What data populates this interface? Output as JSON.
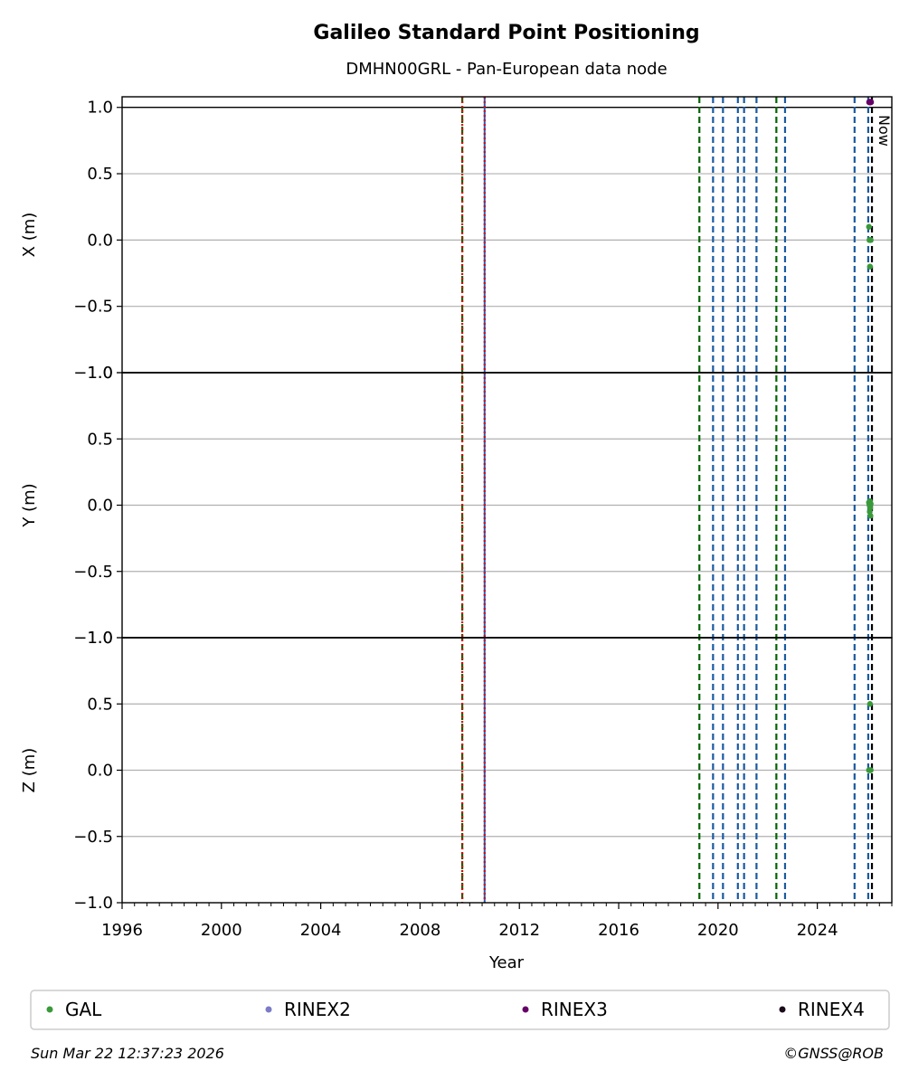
{
  "chart_data": {
    "type": "scatter",
    "title": "Galileo Standard Point Positioning",
    "subtitle": "DMHN00GRL - Pan-European data node",
    "xlabel": "Year",
    "xlim": [
      1996.0,
      2027.0
    ],
    "x_ticks": [
      1996,
      2000,
      2004,
      2008,
      2012,
      2016,
      2020,
      2024
    ],
    "x_tick_labels": [
      "1996",
      "2000",
      "2004",
      "2008",
      "2012",
      "2016",
      "2020",
      "2024"
    ],
    "x_minor_tick_step": 0.5,
    "now_label": "Now",
    "now_x": 2026.2,
    "grid": true,
    "panels": [
      {
        "ylabel": "X (m)",
        "ylim": [
          -1.0,
          1.08
        ],
        "y_ticks": [
          -1.0,
          -0.5,
          0.0,
          0.5,
          1.0
        ],
        "y_tick_labels": [
          "−1.0",
          "−0.5",
          "0.0",
          "0.5",
          "1.0"
        ],
        "points": [
          {
            "series": "GAL",
            "x": 2026.08,
            "y": 0.1
          },
          {
            "series": "GAL",
            "x": 2026.1,
            "y": 0.0
          },
          {
            "series": "GAL",
            "x": 2026.13,
            "y": 0.0
          },
          {
            "series": "GAL",
            "x": 2026.15,
            "y": 0.0
          },
          {
            "series": "GAL",
            "x": 2026.12,
            "y": -0.2
          },
          {
            "series": "RINEX3",
            "x": 2026.1,
            "y": 1.04
          },
          {
            "series": "RINEX3",
            "x": 2026.15,
            "y": 1.04
          }
        ]
      },
      {
        "ylabel": "Y (m)",
        "ylim": [
          -1.0,
          1.0
        ],
        "y_ticks": [
          -1.0,
          -0.5,
          0.0,
          0.5,
          1.0
        ],
        "y_tick_labels": [
          "−1.0",
          "−0.5",
          "0.0",
          "0.5",
          "1.0"
        ],
        "points": [
          {
            "series": "GAL",
            "x": 2026.08,
            "y": 0.02
          },
          {
            "series": "GAL",
            "x": 2026.12,
            "y": 0.03
          },
          {
            "series": "GAL",
            "x": 2026.15,
            "y": 0.01
          },
          {
            "series": "GAL",
            "x": 2026.1,
            "y": 0.0
          },
          {
            "series": "GAL",
            "x": 2026.13,
            "y": -0.02
          },
          {
            "series": "GAL",
            "x": 2026.11,
            "y": -0.05
          },
          {
            "series": "GAL",
            "x": 2026.14,
            "y": -0.08
          }
        ]
      },
      {
        "ylabel": "Z (m)",
        "ylim": [
          -1.0,
          1.0
        ],
        "y_ticks": [
          -1.0,
          -0.5,
          0.0,
          0.5,
          1.0
        ],
        "y_tick_labels": [
          "−1.0",
          "−0.5",
          "0.0",
          "0.5",
          "1.0"
        ],
        "points": [
          {
            "series": "GAL",
            "x": 2026.12,
            "y": 0.5
          },
          {
            "series": "GAL",
            "x": 2026.08,
            "y": 0.0
          },
          {
            "series": "GAL",
            "x": 2026.12,
            "y": 0.0
          },
          {
            "series": "GAL",
            "x": 2026.15,
            "y": 0.0
          }
        ]
      }
    ],
    "event_lines": [
      {
        "x": 2009.7,
        "color": "#006400",
        "style": "dashed"
      },
      {
        "x": 2009.7,
        "color": "#dd0000",
        "style": "dotted"
      },
      {
        "x": 2010.6,
        "color": "#1f5fbf",
        "style": "solid"
      },
      {
        "x": 2010.6,
        "color": "#dd0000",
        "style": "dotted"
      },
      {
        "x": 2019.25,
        "color": "#006400",
        "style": "dashed"
      },
      {
        "x": 2019.8,
        "color": "#1a5aa0",
        "style": "dashed"
      },
      {
        "x": 2020.2,
        "color": "#1a5aa0",
        "style": "dashed"
      },
      {
        "x": 2020.8,
        "color": "#1a5aa0",
        "style": "dashed"
      },
      {
        "x": 2021.05,
        "color": "#1a5aa0",
        "style": "dashed"
      },
      {
        "x": 2021.55,
        "color": "#1a5aa0",
        "style": "dashed"
      },
      {
        "x": 2022.35,
        "color": "#006400",
        "style": "dashed"
      },
      {
        "x": 2022.7,
        "color": "#1a5aa0",
        "style": "dashed"
      },
      {
        "x": 2025.5,
        "color": "#1a5aa0",
        "style": "dashed"
      },
      {
        "x": 2026.05,
        "color": "#1a5aa0",
        "style": "dashed"
      },
      {
        "x": 2026.2,
        "color": "#000000",
        "style": "dashed"
      }
    ],
    "legend": {
      "placement": "bottom",
      "entries": [
        {
          "name": "GAL",
          "color": "#3a9a3a"
        },
        {
          "name": "RINEX2",
          "color": "#7b7bc8"
        },
        {
          "name": "RINEX3",
          "color": "#660066"
        },
        {
          "name": "RINEX4",
          "color": "#1a0a1a"
        }
      ]
    }
  },
  "footer": {
    "timestamp": "Sun Mar 22 12:37:23 2026",
    "copyright": "©GNSS@ROB"
  }
}
